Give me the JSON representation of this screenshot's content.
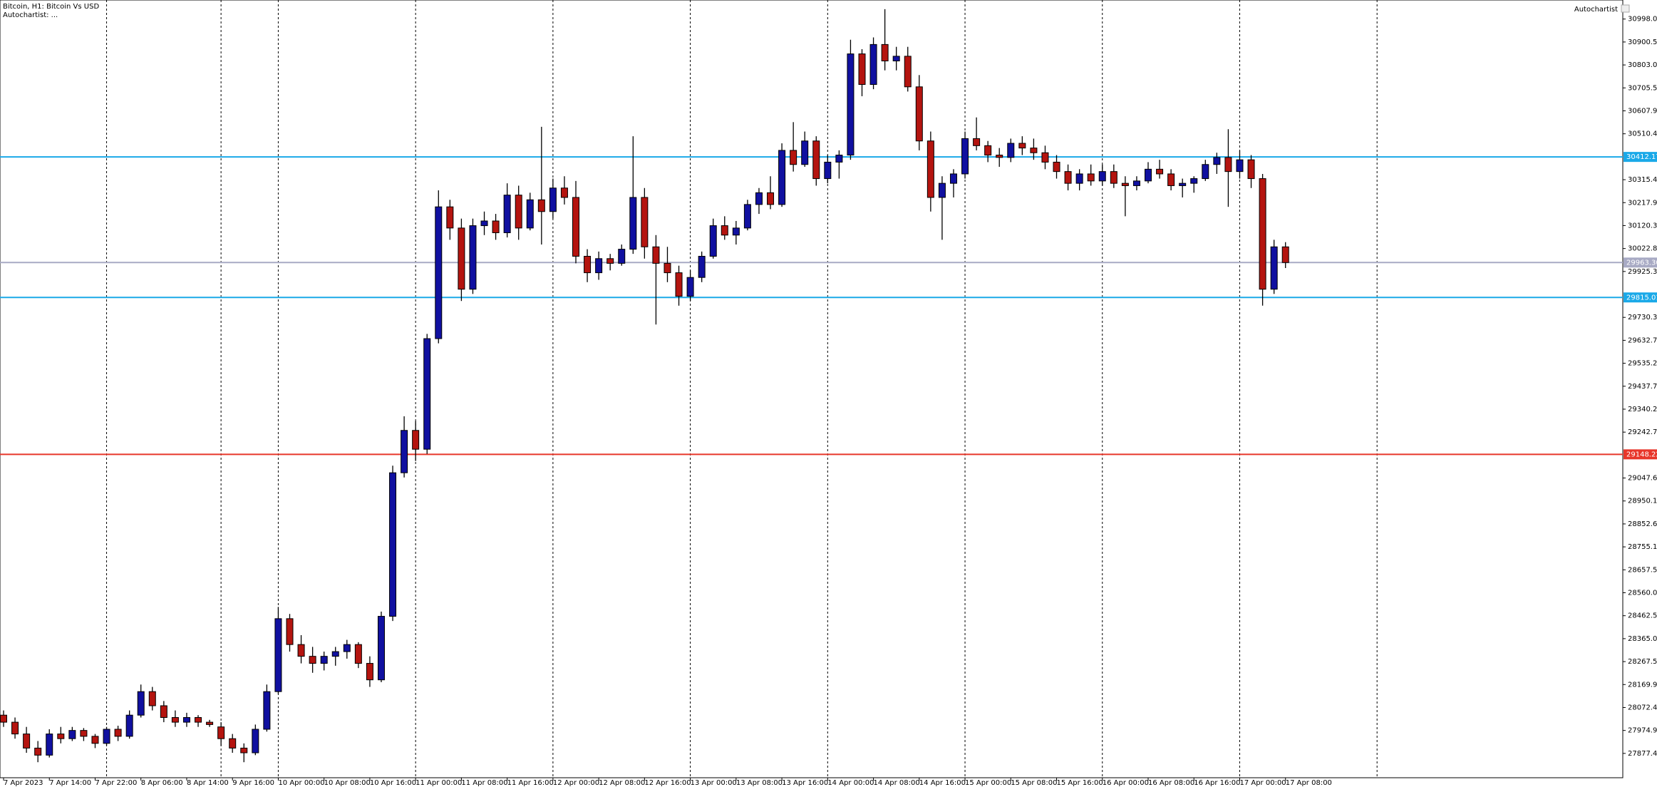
{
  "chart_data": {
    "type": "candlestick",
    "title": "Bitcoin, H1:  Bitcoin Vs USD",
    "subtitle": "Autochartist: ...",
    "annotation": "Autochartist",
    "up_color": "#1010a0",
    "down_color": "#b4140f",
    "ylim": [
      27774,
      31079
    ],
    "yticks": [
      30998.07,
      30900.55,
      30803.03,
      30705.51,
      30607.99,
      30510.47,
      30315.43,
      30217.91,
      30120.39,
      30022.87,
      29925.35,
      29730.31,
      29632.79,
      29535.27,
      29437.75,
      29340.23,
      29242.71,
      29047.67,
      28950.15,
      28852.63,
      28755.11,
      28657.59,
      28560.07,
      28462.55,
      28365.03,
      28267.51,
      28169.99,
      28072.47,
      27974.95,
      27877.43
    ],
    "levels": [
      {
        "value": 30412.17,
        "color": "#1aa9e8"
      },
      {
        "value": 29815.01,
        "color": "#1aa9e8"
      },
      {
        "value": 29148.22,
        "color": "#e8362a"
      },
      {
        "value": 29963.3,
        "label": "29963.30",
        "color": "#a8aac4"
      }
    ],
    "categories": [
      "7 Apr 2023",
      null,
      null,
      null,
      "7 Apr 14:00",
      null,
      null,
      null,
      "7 Apr 22:00",
      null,
      null,
      null,
      "8 Apr 06:00",
      null,
      null,
      null,
      "8 Apr 14:00",
      null,
      null,
      null,
      "9 Apr 16:00",
      null,
      null,
      null,
      "10 Apr 00:00",
      null,
      null,
      null,
      "10 Apr 08:00",
      null,
      null,
      null,
      "10 Apr 16:00",
      null,
      null,
      null,
      "11 Apr 00:00",
      null,
      null,
      null,
      "11 Apr 08:00",
      null,
      null,
      null,
      "11 Apr 16:00",
      null,
      null,
      null,
      "12 Apr 00:00",
      null,
      null,
      null,
      "12 Apr 08:00",
      null,
      null,
      null,
      "12 Apr 16:00",
      null,
      null,
      null,
      "13 Apr 00:00",
      null,
      null,
      null,
      "13 Apr 08:00",
      null,
      null,
      null,
      "13 Apr 16:00",
      null,
      null,
      null,
      "14 Apr 00:00",
      null,
      null,
      null,
      "14 Apr 08:00",
      null,
      null,
      null,
      "14 Apr 16:00",
      null,
      null,
      null,
      "15 Apr 00:00",
      null,
      null,
      null,
      "15 Apr 08:00",
      null,
      null,
      null,
      "15 Apr 16:00",
      null,
      null,
      null,
      "16 Apr 00:00",
      null,
      null,
      null,
      "16 Apr 08:00",
      null,
      null,
      null,
      "16 Apr 16:00",
      null,
      null,
      null,
      "17 Apr 00:00",
      null,
      null,
      null,
      "17 Apr 08:00"
    ],
    "values": [
      [
        28040,
        28060,
        27990,
        28010
      ],
      [
        28010,
        28030,
        27940,
        27960
      ],
      [
        27960,
        27990,
        27880,
        27900
      ],
      [
        27900,
        27930,
        27840,
        27870
      ],
      [
        27870,
        27980,
        27860,
        27960
      ],
      [
        27960,
        27990,
        27920,
        27940
      ],
      [
        27940,
        27990,
        27930,
        27975
      ],
      [
        27975,
        27985,
        27930,
        27950
      ],
      [
        27950,
        27960,
        27900,
        27920
      ],
      [
        27920,
        27990,
        27910,
        27980
      ],
      [
        27980,
        27995,
        27930,
        27950
      ],
      [
        27950,
        28060,
        27940,
        28040
      ],
      [
        28040,
        28170,
        28030,
        28140
      ],
      [
        28140,
        28160,
        28060,
        28080
      ],
      [
        28080,
        28100,
        28010,
        28030
      ],
      [
        28030,
        28060,
        27990,
        28010
      ],
      [
        28010,
        28050,
        27990,
        28030
      ],
      [
        28030,
        28040,
        27990,
        28010
      ],
      [
        28010,
        28020,
        27990,
        28000
      ],
      [
        27990,
        28010,
        27910,
        27940
      ],
      [
        27940,
        27960,
        27880,
        27900
      ],
      [
        27900,
        27920,
        27840,
        27880
      ],
      [
        27880,
        28000,
        27870,
        27980
      ],
      [
        27980,
        28170,
        27970,
        28140
      ],
      [
        28140,
        28500,
        28130,
        28450
      ],
      [
        28450,
        28470,
        28310,
        28340
      ],
      [
        28340,
        28380,
        28260,
        28290
      ],
      [
        28290,
        28330,
        28220,
        28260
      ],
      [
        28260,
        28310,
        28230,
        28290
      ],
      [
        28290,
        28330,
        28250,
        28310
      ],
      [
        28310,
        28360,
        28280,
        28340
      ],
      [
        28340,
        28350,
        28240,
        28260
      ],
      [
        28260,
        28290,
        28160,
        28190
      ],
      [
        28190,
        28480,
        28180,
        28460
      ],
      [
        28460,
        29100,
        28440,
        29070
      ],
      [
        29070,
        29310,
        29050,
        29250
      ],
      [
        29250,
        29290,
        29120,
        29170
      ],
      [
        29170,
        29660,
        29150,
        29640
      ],
      [
        29640,
        30270,
        29620,
        30200
      ],
      [
        30200,
        30230,
        30060,
        30110
      ],
      [
        30110,
        30150,
        29800,
        29850
      ],
      [
        29850,
        30150,
        29830,
        30120
      ],
      [
        30120,
        30180,
        30080,
        30140
      ],
      [
        30140,
        30170,
        30060,
        30090
      ],
      [
        30090,
        30300,
        30070,
        30250
      ],
      [
        30250,
        30290,
        30060,
        30110
      ],
      [
        30110,
        30260,
        30100,
        30230
      ],
      [
        30230,
        30540,
        30040,
        30180
      ],
      [
        30180,
        30320,
        30150,
        30280
      ],
      [
        30280,
        30330,
        30210,
        30240
      ],
      [
        30240,
        30310,
        29960,
        29990
      ],
      [
        29990,
        30020,
        29880,
        29920
      ],
      [
        29920,
        30010,
        29890,
        29980
      ],
      [
        29980,
        30000,
        29930,
        29960
      ],
      [
        29960,
        30040,
        29950,
        30020
      ],
      [
        30020,
        30500,
        30000,
        30240
      ],
      [
        30240,
        30280,
        29980,
        30030
      ],
      [
        30030,
        30080,
        29700,
        29960
      ],
      [
        29960,
        30030,
        29880,
        29920
      ],
      [
        29920,
        29950,
        29780,
        29820
      ],
      [
        29820,
        29930,
        29800,
        29900
      ],
      [
        29900,
        30010,
        29880,
        29990
      ],
      [
        29990,
        30150,
        29980,
        30120
      ],
      [
        30120,
        30160,
        30060,
        30080
      ],
      [
        30080,
        30140,
        30040,
        30110
      ],
      [
        30110,
        30230,
        30100,
        30210
      ],
      [
        30210,
        30280,
        30170,
        30260
      ],
      [
        30260,
        30330,
        30190,
        30210
      ],
      [
        30210,
        30470,
        30200,
        30440
      ],
      [
        30440,
        30560,
        30350,
        30380
      ],
      [
        30380,
        30520,
        30370,
        30480
      ],
      [
        30480,
        30500,
        30290,
        30320
      ],
      [
        30320,
        30420,
        30300,
        30390
      ],
      [
        30390,
        30440,
        30320,
        30420
      ],
      [
        30420,
        30910,
        30400,
        30850
      ],
      [
        30850,
        30870,
        30670,
        30720
      ],
      [
        30720,
        30920,
        30700,
        30890
      ],
      [
        30890,
        31040,
        30780,
        30820
      ],
      [
        30820,
        30880,
        30780,
        30840
      ],
      [
        30840,
        30880,
        30690,
        30710
      ],
      [
        30710,
        30760,
        30440,
        30480
      ],
      [
        30480,
        30520,
        30180,
        30240
      ],
      [
        30240,
        30330,
        30060,
        30300
      ],
      [
        30300,
        30360,
        30240,
        30340
      ],
      [
        30340,
        30520,
        30320,
        30490
      ],
      [
        30490,
        30580,
        30440,
        30460
      ],
      [
        30460,
        30480,
        30390,
        30420
      ],
      [
        30420,
        30450,
        30370,
        30410
      ],
      [
        30410,
        30490,
        30390,
        30470
      ],
      [
        30470,
        30500,
        30420,
        30450
      ],
      [
        30450,
        30490,
        30400,
        30430
      ],
      [
        30430,
        30460,
        30360,
        30390
      ],
      [
        30390,
        30420,
        30320,
        30350
      ],
      [
        30350,
        30380,
        30270,
        30300
      ],
      [
        30300,
        30360,
        30270,
        30340
      ],
      [
        30340,
        30380,
        30290,
        30310
      ],
      [
        30310,
        30380,
        30290,
        30350
      ],
      [
        30350,
        30380,
        30280,
        30300
      ],
      [
        30300,
        30330,
        30160,
        30290
      ],
      [
        30290,
        30330,
        30270,
        30310
      ],
      [
        30310,
        30390,
        30300,
        30360
      ],
      [
        30360,
        30400,
        30320,
        30340
      ],
      [
        30340,
        30360,
        30270,
        30290
      ],
      [
        30290,
        30320,
        30240,
        30300
      ],
      [
        30300,
        30330,
        30260,
        30320
      ],
      [
        30320,
        30400,
        30310,
        30380
      ],
      [
        30380,
        30430,
        30340,
        30410
      ],
      [
        30410,
        30530,
        30200,
        30350
      ],
      [
        30350,
        30440,
        30320,
        30400
      ],
      [
        30400,
        30420,
        30280,
        30320
      ],
      [
        30320,
        30340,
        29780,
        29850
      ],
      [
        29850,
        30060,
        29830,
        30030
      ],
      [
        30030,
        30050,
        29940,
        29963.3
      ]
    ]
  }
}
